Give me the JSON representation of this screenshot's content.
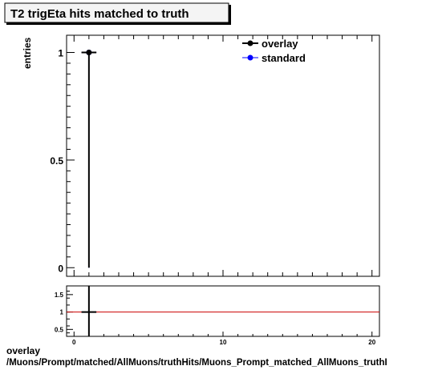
{
  "title": "T2 trigEta hits matched to truth",
  "footer": {
    "line1": "overlay",
    "line2": "/Muons/Prompt/matched/AllMuons/truthHits/Muons_Prompt_matched_AllMuons_truthI"
  },
  "colors": {
    "overlay": "#000000",
    "standard": "#0000ff",
    "ratio_line": "#cc0000"
  },
  "chart_data": [
    {
      "type": "scatter",
      "title": "T2 trigEta hits matched to truth",
      "xlabel": "",
      "ylabel": "entries",
      "xlim": [
        -0.5,
        20.5
      ],
      "ylim": [
        -0.04,
        1.08
      ],
      "yticks": [
        {
          "value": 0,
          "label": "0"
        },
        {
          "value": 0.5,
          "label": "0.5"
        },
        {
          "value": 1,
          "label": "1"
        }
      ],
      "legend": {
        "placement": "top-right",
        "entries": [
          {
            "label": "overlay",
            "color": "#000000"
          },
          {
            "label": "standard",
            "color": "#0000ff"
          }
        ]
      },
      "series": [
        {
          "name": "overlay",
          "x": [
            1
          ],
          "y": [
            1
          ],
          "yerr_low": [
            1
          ],
          "yerr_high": [
            0
          ]
        },
        {
          "name": "standard",
          "x": [
            1
          ],
          "y": [
            1
          ],
          "yerr_low": [
            1
          ],
          "yerr_high": [
            0
          ]
        }
      ]
    },
    {
      "type": "line",
      "title": "",
      "xlabel": "",
      "ylabel": "",
      "xlim": [
        -0.5,
        20.5
      ],
      "ylim": [
        0.3,
        1.75
      ],
      "xticks": [
        {
          "value": 0,
          "label": "0"
        },
        {
          "value": 10,
          "label": "10"
        },
        {
          "value": 20,
          "label": "20"
        }
      ],
      "yticks": [
        {
          "value": 0.5,
          "label": "0.5"
        },
        {
          "value": 1,
          "label": "1"
        },
        {
          "value": 1.5,
          "label": "1.5"
        }
      ],
      "reference_line": 1,
      "series": [
        {
          "x": [
            1
          ],
          "y": [
            1
          ]
        }
      ]
    }
  ]
}
